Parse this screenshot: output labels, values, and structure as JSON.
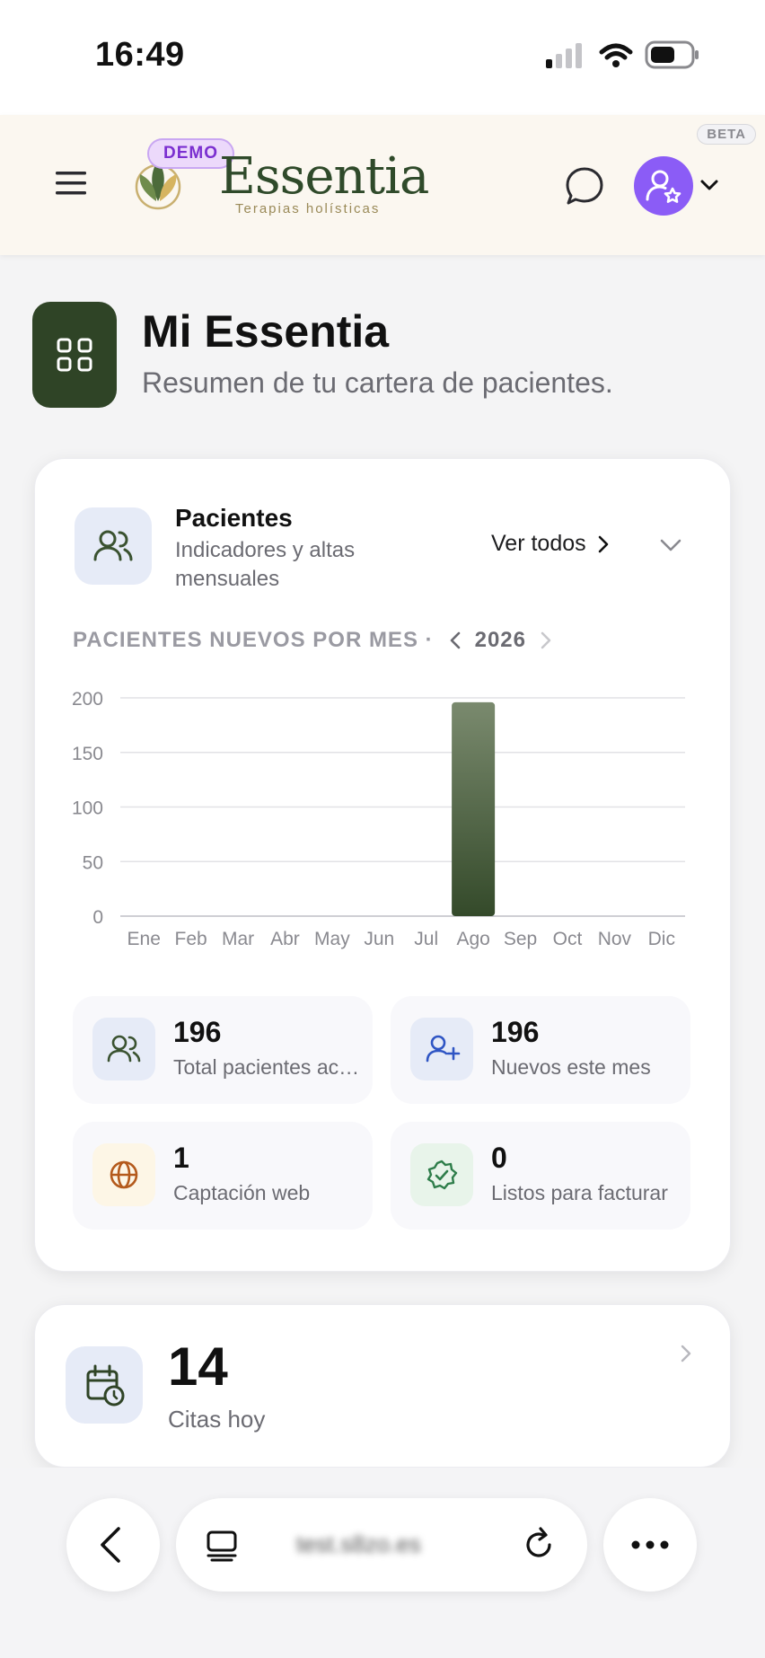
{
  "status_bar": {
    "time": "16:49"
  },
  "header": {
    "beta_badge": "BETA",
    "demo_badge": "DEMO",
    "brand_name": "Essentia",
    "brand_tagline": "Terapias holísticas"
  },
  "page": {
    "title": "Mi Essentia",
    "subtitle": "Resumen de tu cartera de pacientes."
  },
  "patients_card": {
    "title": "Pacientes",
    "subtitle": "Indicadores y altas mensuales",
    "view_all": "Ver todos",
    "chart_heading": "PACIENTES NUEVOS POR MES ·",
    "year": "2026"
  },
  "chart_data": {
    "type": "bar",
    "categories": [
      "Ene",
      "Feb",
      "Mar",
      "Abr",
      "May",
      "Jun",
      "Jul",
      "Ago",
      "Sep",
      "Oct",
      "Nov",
      "Dic"
    ],
    "values": [
      0,
      0,
      0,
      0,
      0,
      0,
      0,
      196,
      0,
      0,
      0,
      0
    ],
    "y_ticks": [
      "0",
      "50",
      "100",
      "150",
      "200"
    ],
    "ylim": [
      0,
      200
    ],
    "grid": true,
    "bar_color": "#3a5230"
  },
  "stats": [
    {
      "value": "196",
      "label": "Total pacientes activos",
      "icon": "users-icon"
    },
    {
      "value": "196",
      "label": "Nuevos este mes",
      "icon": "user-plus-icon"
    },
    {
      "value": "1",
      "label": "Captación web",
      "icon": "globe-icon"
    },
    {
      "value": "0",
      "label": "Listos para facturar",
      "icon": "badge-check-icon"
    }
  ],
  "appointments_card": {
    "value": "14",
    "label": "Citas hoy"
  },
  "browser": {
    "url": "test.s8zo.es"
  },
  "colors": {
    "brand_green": "#2f4426",
    "accent_purple": "#8b5cf6"
  }
}
